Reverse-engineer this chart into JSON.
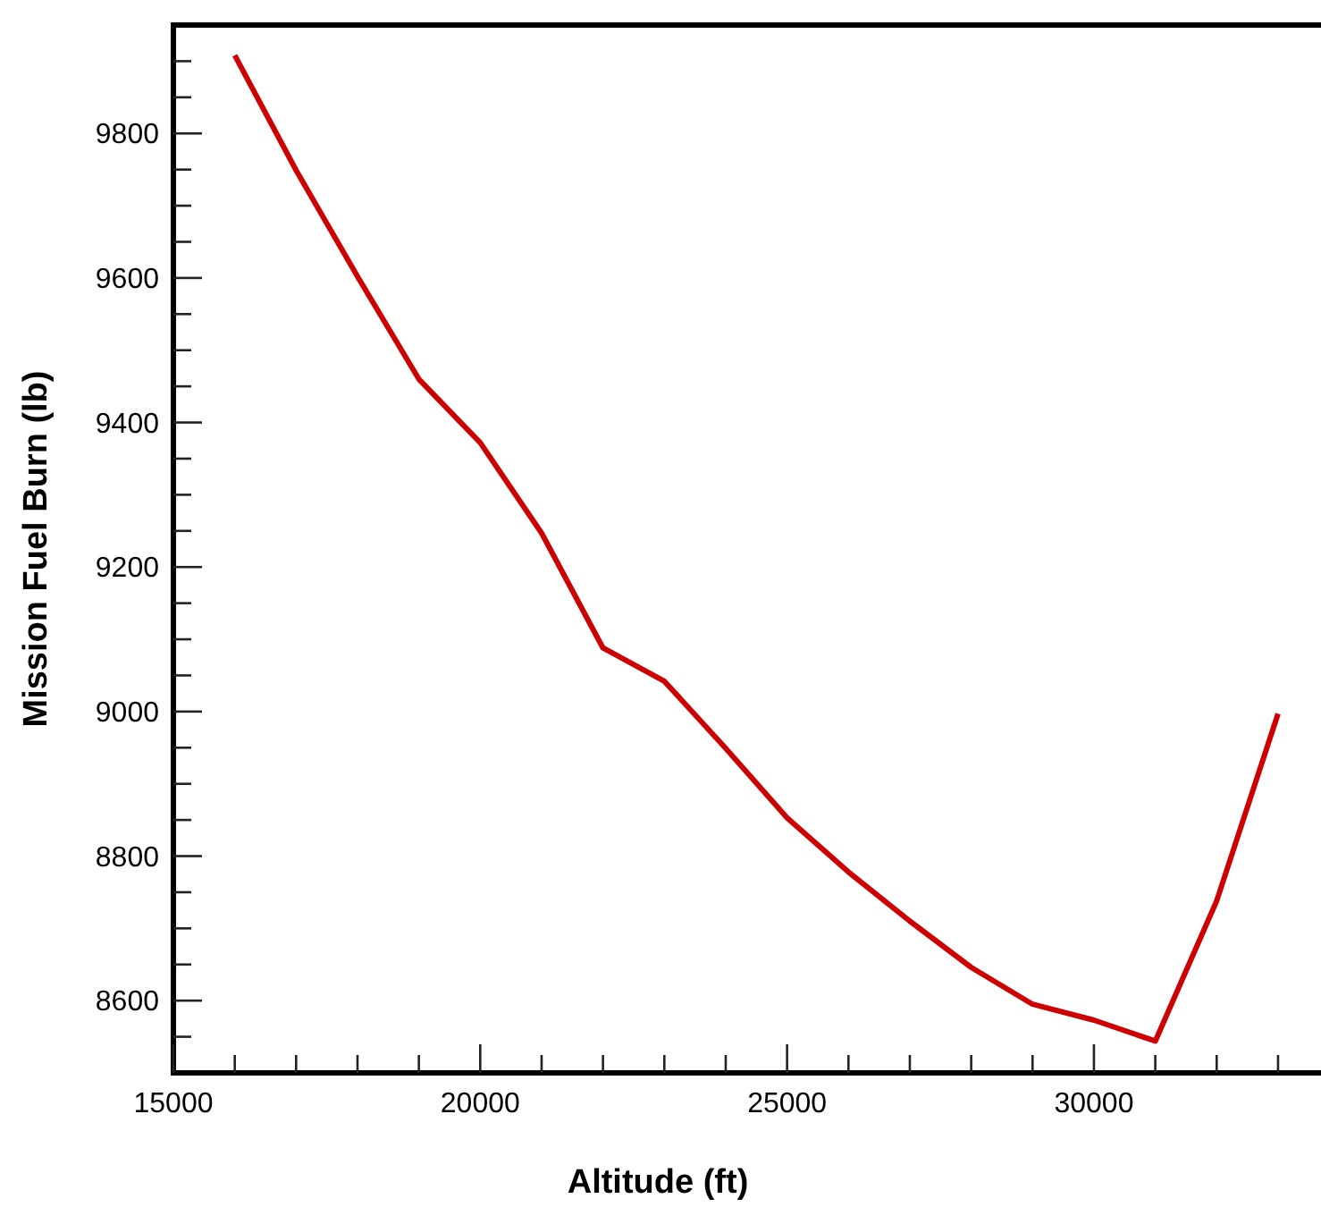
{
  "chart_data": {
    "type": "line",
    "xlabel": "Altitude (ft)",
    "ylabel": "Mission Fuel Burn (lb)",
    "x": [
      16000,
      17000,
      18000,
      19000,
      20000,
      21000,
      22000,
      23000,
      24000,
      25000,
      26000,
      27000,
      28000,
      29000,
      30000,
      31000,
      32000,
      33000
    ],
    "series": [
      {
        "color": "#cc0000",
        "values": [
          9908,
          9749,
          9602,
          9460,
          9372,
          9247,
          9088,
          9042,
          8949,
          8853,
          8778,
          8710,
          8646,
          8595,
          8573,
          8544,
          8738,
          8997
        ]
      }
    ],
    "xlim": [
      15000,
      33700
    ],
    "xticks": [
      15000,
      {
        "value": 16000,
        "label": null
      },
      {
        "value": 17000,
        "label": null
      },
      {
        "value": 18000,
        "label": null
      },
      {
        "value": 19000,
        "label": null
      },
      20000,
      {
        "value": 21000,
        "label": null
      },
      {
        "value": 22000,
        "label": null
      },
      {
        "value": 23000,
        "label": null
      },
      {
        "value": 24000,
        "label": null
      },
      25000,
      {
        "value": 26000,
        "label": null
      },
      {
        "value": 27000,
        "label": null
      },
      {
        "value": 28000,
        "label": null
      },
      {
        "value": 29000,
        "label": null
      },
      30000,
      {
        "value": 31000,
        "label": null
      },
      {
        "value": 32000,
        "label": null
      },
      {
        "value": 33000,
        "label": null
      }
    ],
    "ylim": [
      8500,
      9950
    ],
    "yticks": [
      {
        "value": 8550,
        "label": null
      },
      8600,
      {
        "value": 8650,
        "label": null
      },
      {
        "value": 8700,
        "label": null
      },
      {
        "value": 8750,
        "label": null
      },
      8800,
      {
        "value": 8850,
        "label": null
      },
      {
        "value": 8900,
        "label": null
      },
      {
        "value": 8950,
        "label": null
      },
      9000,
      {
        "value": 9050,
        "label": null
      },
      {
        "value": 9100,
        "label": null
      },
      {
        "value": 9150,
        "label": null
      },
      9200,
      {
        "value": 9250,
        "label": null
      },
      {
        "value": 9300,
        "label": null
      },
      {
        "value": 9350,
        "label": null
      },
      9400,
      {
        "value": 9450,
        "label": null
      },
      {
        "value": 9500,
        "label": null
      },
      {
        "value": 9550,
        "label": null
      },
      9600,
      {
        "value": 9650,
        "label": null
      },
      {
        "value": 9700,
        "label": null
      },
      {
        "value": 9750,
        "label": null
      },
      9800,
      {
        "value": 9850,
        "label": null
      },
      {
        "value": 9900,
        "label": null
      }
    ],
    "grid": false,
    "marker": "none",
    "line_style": "solid"
  }
}
